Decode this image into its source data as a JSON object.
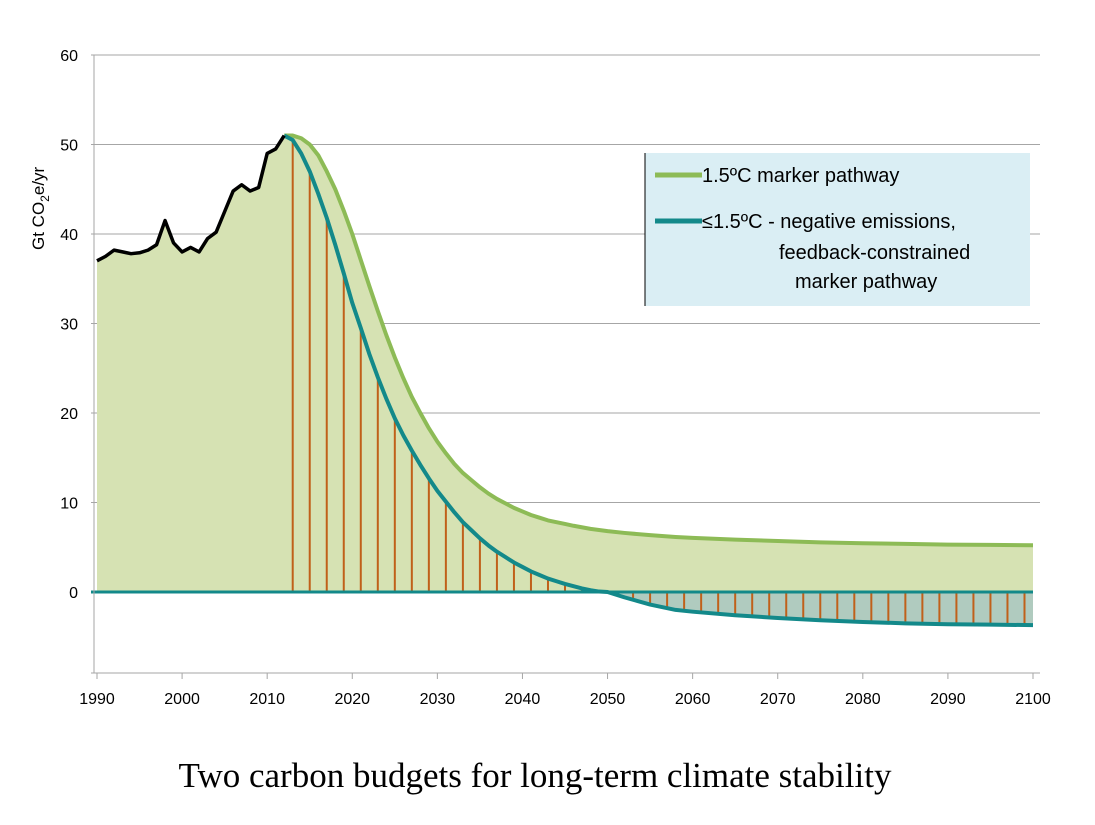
{
  "caption": "Two carbon budgets for long-term climate stability",
  "chart_data": {
    "type": "area",
    "ylabel": "Gt CO2e/yr",
    "ylabel_parts": {
      "pre": "Gt CO",
      "sub": "2",
      "post": "e/yr"
    },
    "xlim": [
      1990,
      2100
    ],
    "ylim": [
      -9,
      60
    ],
    "x_ticks": [
      1990,
      2000,
      2010,
      2020,
      2030,
      2040,
      2050,
      2060,
      2070,
      2080,
      2090,
      2100
    ],
    "y_ticks": [
      0,
      10,
      20,
      30,
      40,
      50,
      60
    ],
    "grid": "horizontal",
    "legend_position": "top-right",
    "colors": {
      "historical": "#000000",
      "marker_pathway": "#8dbb56",
      "negative_pathway": "#13898a",
      "fill_area": "#d6e2b3",
      "bars": "#c0601a",
      "neg_fill": "#6fa08a",
      "legend_bg": "#daeef4",
      "grid": "#a6a6a6"
    },
    "series": [
      {
        "name": "historical",
        "x": [
          1990,
          1991,
          1992,
          1993,
          1994,
          1995,
          1996,
          1997,
          1998,
          1999,
          2000,
          2001,
          2002,
          2003,
          2004,
          2005,
          2006,
          2007,
          2008,
          2009,
          2010,
          2011,
          2012
        ],
        "values": [
          37,
          37.5,
          38.2,
          38,
          37.8,
          37.9,
          38.2,
          38.8,
          41.5,
          39,
          38,
          38.5,
          38,
          39.5,
          40.2,
          42.5,
          44.8,
          45.5,
          44.8,
          45.2,
          49,
          49.5,
          51
        ]
      },
      {
        "name": "1.5ºC marker pathway",
        "x": [
          2012,
          2013,
          2014,
          2015,
          2016,
          2017,
          2018,
          2019,
          2020,
          2021,
          2022,
          2023,
          2024,
          2025,
          2026,
          2027,
          2028,
          2029,
          2030,
          2031,
          2032,
          2033,
          2034,
          2035,
          2036,
          2037,
          2038,
          2039,
          2040,
          2041,
          2042,
          2043,
          2044,
          2045,
          2046,
          2048,
          2050,
          2052,
          2055,
          2058,
          2060,
          2065,
          2070,
          2075,
          2080,
          2085,
          2090,
          2095,
          2100
        ],
        "values": [
          51,
          51,
          50.7,
          50,
          48.8,
          47,
          45,
          42.6,
          40,
          37.1,
          34.2,
          31.4,
          28.7,
          26.2,
          23.9,
          21.8,
          20,
          18.3,
          16.8,
          15.5,
          14.3,
          13.3,
          12.5,
          11.7,
          11,
          10.4,
          9.9,
          9.4,
          9,
          8.6,
          8.3,
          8,
          7.8,
          7.6,
          7.4,
          7.05,
          6.8,
          6.6,
          6.35,
          6.15,
          6.05,
          5.85,
          5.7,
          5.55,
          5.45,
          5.38,
          5.3,
          5.26,
          5.22
        ]
      },
      {
        "name": "≤1.5ºC - negative emissions, feedback-constrained marker pathway",
        "x": [
          2012,
          2013,
          2014,
          2015,
          2016,
          2017,
          2018,
          2019,
          2020,
          2021,
          2022,
          2023,
          2024,
          2025,
          2026,
          2027,
          2028,
          2029,
          2030,
          2031,
          2032,
          2033,
          2034,
          2035,
          2036,
          2037,
          2038,
          2039,
          2040,
          2041,
          2042,
          2043,
          2044,
          2045,
          2046,
          2047,
          2048,
          2049,
          2050,
          2052,
          2055,
          2058,
          2060,
          2065,
          2070,
          2075,
          2080,
          2085,
          2090,
          2095,
          2100
        ],
        "values": [
          51,
          50.5,
          49,
          47,
          44.5,
          41.8,
          38.8,
          35.6,
          32.3,
          29.5,
          26.6,
          24,
          21.6,
          19.4,
          17.5,
          15.8,
          14.2,
          12.7,
          11.3,
          10.1,
          8.9,
          7.8,
          6.9,
          6,
          5.2,
          4.5,
          3.9,
          3.3,
          2.8,
          2.3,
          1.9,
          1.5,
          1.2,
          0.9,
          0.65,
          0.4,
          0.2,
          0.05,
          0,
          -0.6,
          -1.4,
          -2.0,
          -2.2,
          -2.6,
          -2.9,
          -3.15,
          -3.35,
          -3.5,
          -3.6,
          -3.65,
          -3.7
        ]
      }
    ],
    "legend": [
      {
        "label": "1.5ºC marker pathway",
        "series": 1
      },
      {
        "label_lines": [
          "≤1.5ºC - negative emissions,",
          "feedback-constrained",
          "marker pathway"
        ],
        "series": 2
      }
    ]
  }
}
